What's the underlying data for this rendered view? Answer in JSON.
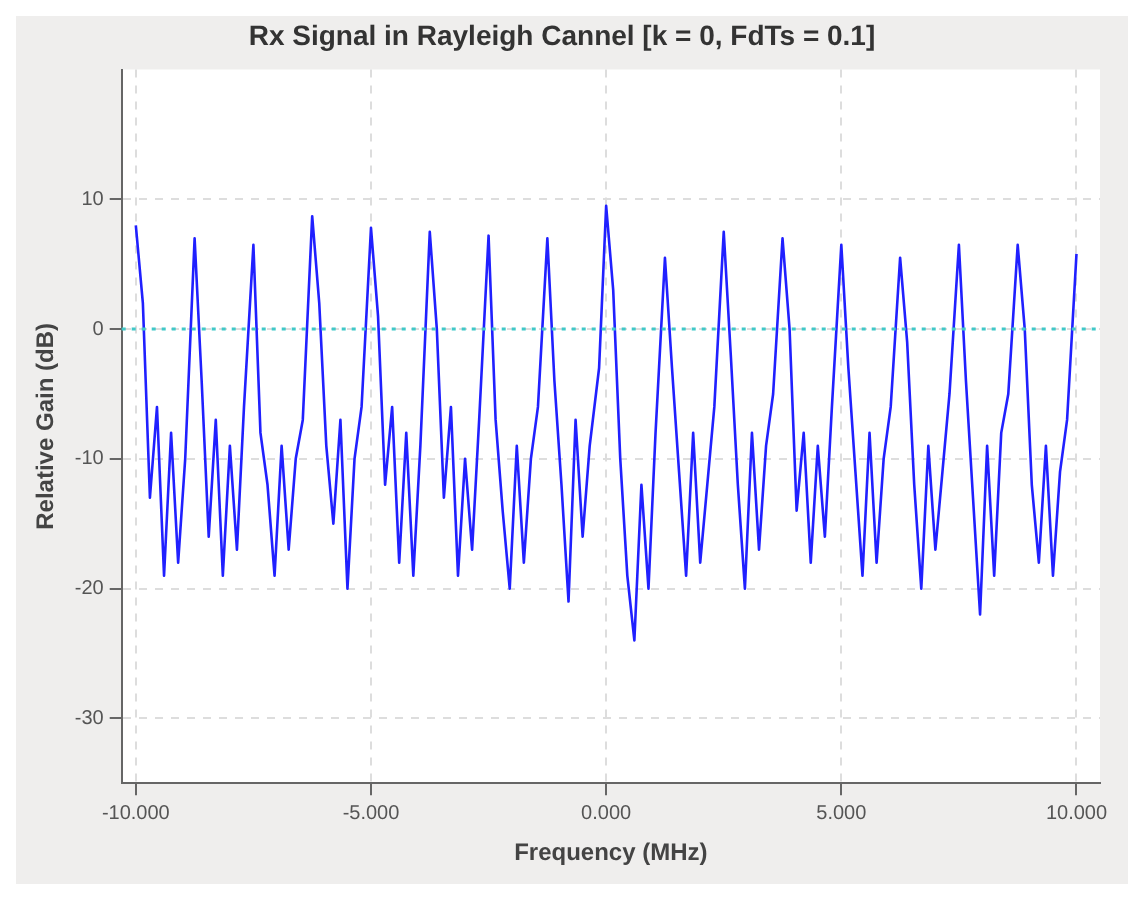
{
  "chart_data": {
    "type": "line",
    "title": "Rx Signal in Rayleigh Cannel [k = 0, FdTs = 0.1]",
    "xlabel": "Frequency (MHz)",
    "ylabel": "Relative Gain (dB)",
    "xlim": [
      -10.3,
      10.5
    ],
    "xticks": [
      {
        "value": -10,
        "label": "-10.000"
      },
      {
        "value": -5,
        "label": "-5.000"
      },
      {
        "value": 0,
        "label": "0.000"
      },
      {
        "value": 5,
        "label": "5.000"
      },
      {
        "value": 10,
        "label": "10.000"
      }
    ],
    "ylim": [
      -35,
      20
    ],
    "yticks": [
      -30,
      -20,
      -10,
      0,
      10
    ],
    "grid": true,
    "legend": false,
    "marker": "none",
    "line_style": "solid",
    "ref_lines": [
      {
        "axis": "y",
        "value": 0,
        "color": "#40c8c8",
        "line_style": "dotted"
      }
    ],
    "series": [
      {
        "color": "#2020ff",
        "x": [
          -10,
          -9.85,
          -9.7,
          -9.55,
          -9.4,
          -9.25,
          -9.1,
          -8.95,
          -8.75,
          -8.6,
          -8.45,
          -8.3,
          -8.15,
          -8.0,
          -7.85,
          -7.7,
          -7.5,
          -7.35,
          -7.2,
          -7.05,
          -6.9,
          -6.75,
          -6.6,
          -6.45,
          -6.25,
          -6.1,
          -5.95,
          -5.8,
          -5.65,
          -5.5,
          -5.35,
          -5.2,
          -5,
          -4.85,
          -4.7,
          -4.55,
          -4.4,
          -4.25,
          -4.1,
          -3.95,
          -3.75,
          -3.6,
          -3.45,
          -3.3,
          -3.15,
          -3.0,
          -2.85,
          -2.7,
          -2.5,
          -2.35,
          -2.2,
          -2.05,
          -1.9,
          -1.75,
          -1.6,
          -1.45,
          -1.25,
          -1.1,
          -0.95,
          -0.8,
          -0.65,
          -0.5,
          -0.35,
          -0.15,
          0,
          0.15,
          0.3,
          0.45,
          0.6,
          0.75,
          0.9,
          1.05,
          1.25,
          1.4,
          1.55,
          1.7,
          1.85,
          2.0,
          2.15,
          2.3,
          2.5,
          2.65,
          2.8,
          2.95,
          3.1,
          3.25,
          3.4,
          3.55,
          3.75,
          3.9,
          4.05,
          4.2,
          4.35,
          4.5,
          4.65,
          4.8,
          5,
          5.15,
          5.3,
          5.45,
          5.6,
          5.75,
          5.9,
          6.05,
          6.25,
          6.4,
          6.55,
          6.7,
          6.85,
          7.0,
          7.15,
          7.3,
          7.5,
          7.65,
          7.8,
          7.95,
          8.1,
          8.25,
          8.4,
          8.55,
          8.75,
          8.9,
          9.05,
          9.2,
          9.35,
          9.5,
          9.65,
          9.8,
          10
        ],
        "values": [
          8,
          2,
          -13,
          -6,
          -19,
          -8,
          -18,
          -10,
          7,
          -4,
          -16,
          -7,
          -19,
          -9,
          -17,
          -6,
          6.5,
          -8,
          -12,
          -19,
          -9,
          -17,
          -10,
          -7,
          8.7,
          2,
          -9,
          -15,
          -7,
          -20,
          -10,
          -6,
          7.8,
          1,
          -12,
          -6,
          -18,
          -8,
          -19,
          -9,
          7.5,
          0,
          -13,
          -6,
          -19,
          -10,
          -17,
          -7,
          7.2,
          -7,
          -14,
          -20,
          -9,
          -18,
          -10,
          -6,
          7,
          -4,
          -12,
          -21,
          -7,
          -16,
          -9,
          -3,
          9.5,
          3,
          -10,
          -19,
          -24,
          -12,
          -20,
          -8,
          5.5,
          -3,
          -11,
          -19,
          -8,
          -18,
          -12,
          -6,
          7.5,
          -2,
          -12,
          -20,
          -8,
          -17,
          -9,
          -5,
          7,
          0,
          -14,
          -8,
          -18,
          -9,
          -16,
          -6,
          6.5,
          -3,
          -11,
          -19,
          -8,
          -18,
          -10,
          -6,
          5.5,
          -1,
          -12,
          -20,
          -9,
          -17,
          -11,
          -5,
          6.5,
          -4,
          -13,
          -22,
          -9,
          -19,
          -8,
          -5,
          6.5,
          0,
          -12,
          -18,
          -9,
          -19,
          -11,
          -7,
          5.8
        ]
      }
    ]
  }
}
